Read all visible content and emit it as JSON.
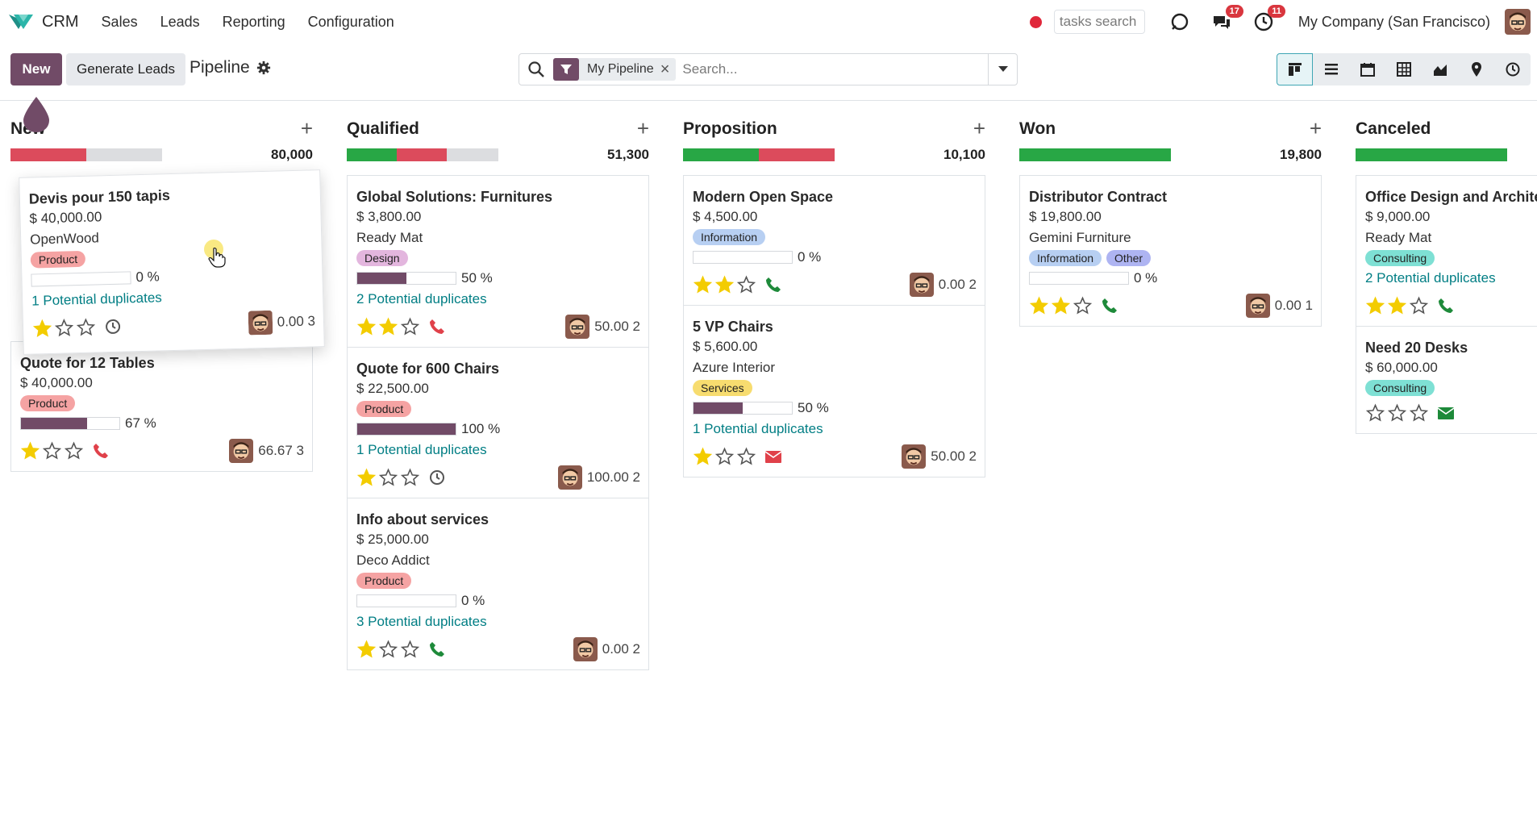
{
  "app": {
    "name": "CRM",
    "menu": [
      "Sales",
      "Leads",
      "Reporting",
      "Configuration"
    ],
    "task_search_placeholder": "tasks search",
    "messages_badge": "17",
    "activities_badge": "11",
    "company": "My Company (San Francisco)"
  },
  "control": {
    "new_label": "New",
    "generate_label": "Generate Leads",
    "breadcrumb": "Pipeline",
    "filter_facet": "My Pipeline",
    "search_placeholder": "Search..."
  },
  "colors": {
    "primary": "#714b67",
    "green": "#28a745",
    "red": "#dc4b5c",
    "link": "#017e84",
    "star": "#f3cc00"
  },
  "columns": [
    {
      "title": "New",
      "total": "80,000",
      "bar": {
        "green": 0,
        "red": 0.5
      },
      "cards": [
        {
          "title": "Quote for 12 Tables",
          "amount": "$ 40,000.00",
          "customer": "",
          "tags": [
            {
              "label": "Product",
              "color": "#f5a3a3"
            }
          ],
          "probability": 67,
          "probability_label": "67 %",
          "duplicates": "",
          "stars": 1,
          "activity": "phone-red",
          "score": "66.67 3"
        }
      ]
    },
    {
      "title": "Qualified",
      "total": "51,300",
      "bar": {
        "green": 0.33,
        "red": 0.33
      },
      "cards": [
        {
          "title": "Global Solutions: Furnitures",
          "amount": "$ 3,800.00",
          "customer": "Ready Mat",
          "tags": [
            {
              "label": "Design",
              "color": "#e3b6de"
            }
          ],
          "probability": 50,
          "probability_label": "50 %",
          "duplicates": "2 Potential duplicates",
          "stars": 2,
          "activity": "phone-red",
          "score": "50.00 2"
        },
        {
          "title": "Quote for 600 Chairs",
          "amount": "$ 22,500.00",
          "customer": "",
          "tags": [
            {
              "label": "Product",
              "color": "#f5a3a3"
            }
          ],
          "probability": 100,
          "probability_label": "100 %",
          "duplicates": "1 Potential duplicates",
          "stars": 1,
          "activity": "clock",
          "score": "100.00 2"
        },
        {
          "title": "Info about services",
          "amount": "$ 25,000.00",
          "customer": "Deco Addict",
          "tags": [
            {
              "label": "Product",
              "color": "#f5a3a3"
            }
          ],
          "probability": 0,
          "probability_label": "0 %",
          "duplicates": "3 Potential duplicates",
          "stars": 1,
          "activity": "phone-green",
          "score": "0.00 2"
        }
      ]
    },
    {
      "title": "Proposition",
      "total": "10,100",
      "bar": {
        "green": 0.5,
        "red": 0.5
      },
      "cards": [
        {
          "title": "Modern Open Space",
          "amount": "$ 4,500.00",
          "customer": "",
          "tags": [
            {
              "label": "Information",
              "color": "#b7cff2"
            }
          ],
          "probability": 0,
          "probability_label": "0 %",
          "duplicates": "",
          "stars": 2,
          "activity": "phone-green",
          "score": "0.00 2"
        },
        {
          "title": "5 VP Chairs",
          "amount": "$ 5,600.00",
          "customer": "Azure Interior",
          "tags": [
            {
              "label": "Services",
              "color": "#f7dc6f"
            }
          ],
          "probability": 50,
          "probability_label": "50 %",
          "duplicates": "1 Potential duplicates",
          "stars": 1,
          "activity": "mail-red",
          "score": "50.00 2"
        }
      ]
    },
    {
      "title": "Won",
      "total": "19,800",
      "bar": {
        "green": 1,
        "red": 0
      },
      "cards": [
        {
          "title": "Distributor Contract",
          "amount": "$ 19,800.00",
          "customer": "Gemini Furniture",
          "tags": [
            {
              "label": "Information",
              "color": "#b7cff2"
            },
            {
              "label": "Other",
              "color": "#aeb4f2"
            }
          ],
          "probability": 0,
          "probability_label": "0 %",
          "duplicates": "",
          "stars": 2,
          "activity": "phone-green",
          "score": "0.00 1"
        }
      ]
    },
    {
      "title": "Canceled",
      "total": "",
      "bar": {
        "green": 1,
        "red": 0
      },
      "cards": [
        {
          "title": "Office Design and Archite",
          "amount": "$ 9,000.00",
          "customer": "Ready Mat",
          "tags": [
            {
              "label": "Consulting",
              "color": "#7ee0d4"
            }
          ],
          "probability": -1,
          "probability_label": "",
          "duplicates": "2 Potential duplicates",
          "stars": 2,
          "activity": "phone-green",
          "score": ""
        },
        {
          "title": "Need 20 Desks",
          "amount": "$ 60,000.00",
          "customer": "",
          "tags": [
            {
              "label": "Consulting",
              "color": "#7ee0d4"
            }
          ],
          "probability": -1,
          "probability_label": "",
          "duplicates": "",
          "stars": 0,
          "activity": "mail-green",
          "score": ""
        }
      ]
    }
  ],
  "dragged_card": {
    "title": "Devis pour 150 tapis",
    "amount": "$ 40,000.00",
    "customer": "OpenWood",
    "tags": [
      {
        "label": "Product",
        "color": "#f5a3a3"
      }
    ],
    "probability": 0,
    "probability_label": "0 %",
    "duplicates": "1 Potential duplicates",
    "stars": 1,
    "activity": "clock",
    "score": "0.00 3"
  }
}
